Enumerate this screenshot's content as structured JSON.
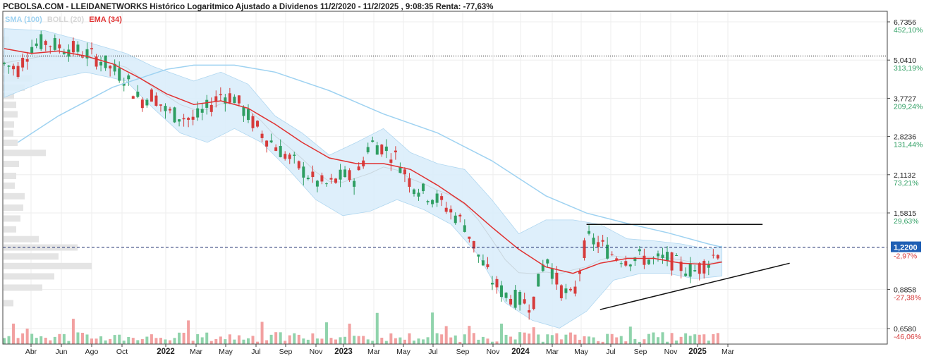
{
  "header": {
    "title": "PCBOLSA.COM - LLEIDANETWORKS Histórico Logaritmico Ajustado a Dividenos 11/2/2020 - 11/2/2025 , 9:08:35 Renta: -77,63%"
  },
  "legend": {
    "sma": "SMA (100)",
    "boll": "BOLL (20)",
    "ema": "EMA (34)"
  },
  "colors": {
    "up": "#2e9e62",
    "down": "#d63b3b",
    "up_volume": "#8fd3ab",
    "down_volume": "#f2a0a0",
    "ema": "#e03131",
    "sma": "#9ed2f1",
    "bollinger_fill": "#dbeefb",
    "current_price_box": "#1f5fb4"
  },
  "chart_data": {
    "type": "candlestick",
    "scale": "log",
    "y_axis_ticks": [
      {
        "price": "6,7356",
        "pct": "452,10%",
        "value": 6.7356
      },
      {
        "price": "5,0410",
        "pct": "313,19%",
        "value": 5.041
      },
      {
        "price": "3,7727",
        "pct": "209,24%",
        "value": 3.7727
      },
      {
        "price": "2,8236",
        "pct": "131,44%",
        "value": 2.8236
      },
      {
        "price": "2,1132",
        "pct": "73,21%",
        "value": 2.1132
      },
      {
        "price": "1,5815",
        "pct": "29,63%",
        "value": 1.5815
      },
      {
        "price": "0,8858",
        "pct": "-27,38%",
        "value": 0.8858
      },
      {
        "price": "0,6580",
        "pct": "-46,06%",
        "value": 0.658
      }
    ],
    "current_price": {
      "label": "1,2200",
      "pct": "-2,97%",
      "value": 1.22
    },
    "resistance_reference": 5.2,
    "x_axis_ticks": [
      {
        "label": "Abr",
        "bold": false
      },
      {
        "label": "Jun",
        "bold": false
      },
      {
        "label": "Ago",
        "bold": false
      },
      {
        "label": "Oct",
        "bold": false
      },
      {
        "label": "2022",
        "bold": true
      },
      {
        "label": "Mar",
        "bold": false
      },
      {
        "label": "May",
        "bold": false
      },
      {
        "label": "Jul",
        "bold": false
      },
      {
        "label": "Sep",
        "bold": false
      },
      {
        "label": "Nov",
        "bold": false
      },
      {
        "label": "2023",
        "bold": true
      },
      {
        "label": "Mar",
        "bold": false
      },
      {
        "label": "May",
        "bold": false
      },
      {
        "label": "Jul",
        "bold": false
      },
      {
        "label": "Sep",
        "bold": false
      },
      {
        "label": "Nov",
        "bold": false
      },
      {
        "label": "2024",
        "bold": true
      },
      {
        "label": "Mar",
        "bold": false
      },
      {
        "label": "May",
        "bold": false
      },
      {
        "label": "Jul",
        "bold": false
      },
      {
        "label": "Sep",
        "bold": false
      },
      {
        "label": "Nov",
        "bold": false
      },
      {
        "label": "2025",
        "bold": true
      },
      {
        "label": "Mar",
        "bold": false
      }
    ],
    "price_path": [
      [
        0,
        4.9
      ],
      [
        1,
        4.7
      ],
      [
        2,
        5.6
      ],
      [
        3,
        5.8
      ],
      [
        4,
        5.6
      ],
      [
        5,
        5.5
      ],
      [
        6,
        5.3
      ],
      [
        7,
        5.1
      ],
      [
        8,
        4.7
      ],
      [
        9,
        4.4
      ],
      [
        10,
        3.7
      ],
      [
        11,
        3.9
      ],
      [
        12,
        3.4
      ],
      [
        13,
        3.3
      ],
      [
        14,
        3.2
      ],
      [
        15,
        3.5
      ],
      [
        16,
        3.9
      ],
      [
        17,
        3.8
      ],
      [
        18,
        3.3
      ],
      [
        19,
        2.9
      ],
      [
        20,
        2.65
      ],
      [
        21,
        2.4
      ],
      [
        22,
        2.2
      ],
      [
        23,
        2.0
      ],
      [
        24,
        1.95
      ],
      [
        25,
        2.1
      ],
      [
        26,
        2.05
      ],
      [
        27,
        2.7
      ],
      [
        28,
        2.6
      ],
      [
        29,
        2.4
      ],
      [
        30,
        2.0
      ],
      [
        31,
        1.85
      ],
      [
        32,
        1.75
      ],
      [
        33,
        1.6
      ],
      [
        34,
        1.45
      ],
      [
        35,
        1.15
      ],
      [
        36,
        0.95
      ],
      [
        37,
        0.85
      ],
      [
        38,
        0.82
      ],
      [
        39,
        0.79
      ],
      [
        40,
        1.15
      ],
      [
        41,
        0.9
      ],
      [
        42,
        0.82
      ],
      [
        43,
        1.3
      ],
      [
        44,
        1.25
      ],
      [
        45,
        1.15
      ],
      [
        46,
        1.12
      ],
      [
        47,
        1.13
      ],
      [
        48,
        1.1
      ],
      [
        49,
        1.12
      ],
      [
        50,
        1.05
      ],
      [
        51,
        1.02
      ],
      [
        52,
        1.1
      ],
      [
        53,
        1.22
      ]
    ],
    "ema_path": [
      [
        0,
        5.5
      ],
      [
        2,
        5.3
      ],
      [
        4,
        5.4
      ],
      [
        6,
        5.2
      ],
      [
        8,
        4.9
      ],
      [
        10,
        4.4
      ],
      [
        12,
        3.9
      ],
      [
        14,
        3.6
      ],
      [
        16,
        3.7
      ],
      [
        18,
        3.5
      ],
      [
        20,
        3.1
      ],
      [
        22,
        2.7
      ],
      [
        24,
        2.4
      ],
      [
        26,
        2.3
      ],
      [
        28,
        2.3
      ],
      [
        30,
        2.2
      ],
      [
        32,
        1.95
      ],
      [
        34,
        1.7
      ],
      [
        36,
        1.42
      ],
      [
        38,
        1.2
      ],
      [
        40,
        1.05
      ],
      [
        42,
        1.0
      ],
      [
        44,
        1.08
      ],
      [
        46,
        1.12
      ],
      [
        48,
        1.12
      ],
      [
        50,
        1.08
      ],
      [
        52,
        1.07
      ],
      [
        53,
        1.09
      ]
    ],
    "sma_path": [
      [
        1,
        2.7
      ],
      [
        4,
        3.3
      ],
      [
        8,
        4.1
      ],
      [
        12,
        4.7
      ],
      [
        14,
        4.85
      ],
      [
        17,
        4.85
      ],
      [
        20,
        4.6
      ],
      [
        24,
        4.0
      ],
      [
        28,
        3.35
      ],
      [
        32,
        2.9
      ],
      [
        36,
        2.35
      ],
      [
        40,
        1.8
      ],
      [
        43,
        1.58
      ],
      [
        46,
        1.46
      ],
      [
        49,
        1.36
      ],
      [
        52,
        1.25
      ],
      [
        53,
        1.22
      ]
    ],
    "bollinger_upper": [
      [
        0,
        6.4
      ],
      [
        3,
        6.3
      ],
      [
        6,
        5.8
      ],
      [
        9,
        5.3
      ],
      [
        11,
        4.8
      ],
      [
        14,
        4.3
      ],
      [
        16,
        4.6
      ],
      [
        18,
        4.2
      ],
      [
        20,
        3.3
      ],
      [
        22,
        2.9
      ],
      [
        24,
        2.45
      ],
      [
        26,
        2.7
      ],
      [
        28,
        3.0
      ],
      [
        30,
        2.5
      ],
      [
        32,
        2.3
      ],
      [
        34,
        2.2
      ],
      [
        36,
        1.75
      ],
      [
        38,
        1.35
      ],
      [
        40,
        1.5
      ],
      [
        42,
        1.5
      ],
      [
        44,
        1.45
      ],
      [
        46,
        1.3
      ],
      [
        48,
        1.28
      ],
      [
        50,
        1.25
      ],
      [
        52,
        1.2
      ],
      [
        53,
        1.23
      ]
    ],
    "bollinger_lower": [
      [
        0,
        3.8
      ],
      [
        3,
        4.3
      ],
      [
        6,
        4.6
      ],
      [
        9,
        4.3
      ],
      [
        11,
        3.5
      ],
      [
        13,
        2.9
      ],
      [
        15,
        2.7
      ],
      [
        17,
        3.0
      ],
      [
        19,
        2.7
      ],
      [
        21,
        2.2
      ],
      [
        23,
        1.75
      ],
      [
        25,
        1.55
      ],
      [
        27,
        1.6
      ],
      [
        29,
        1.75
      ],
      [
        31,
        1.62
      ],
      [
        33,
        1.45
      ],
      [
        35,
        1.15
      ],
      [
        37,
        0.8
      ],
      [
        39,
        0.7
      ],
      [
        41,
        0.66
      ],
      [
        43,
        0.75
      ],
      [
        45,
        0.95
      ],
      [
        47,
        1.0
      ],
      [
        49,
        1.0
      ],
      [
        51,
        0.96
      ],
      [
        53,
        0.98
      ]
    ],
    "volume_profile": [
      [
        5.9,
        8
      ],
      [
        5.6,
        10
      ],
      [
        5.3,
        12
      ],
      [
        5.0,
        14
      ],
      [
        4.7,
        22
      ],
      [
        4.4,
        40
      ],
      [
        4.1,
        30
      ],
      [
        3.85,
        15
      ],
      [
        3.6,
        18
      ],
      [
        3.35,
        20
      ],
      [
        3.1,
        15
      ],
      [
        2.9,
        14
      ],
      [
        2.7,
        20
      ],
      [
        2.5,
        60
      ],
      [
        2.3,
        22
      ],
      [
        2.1,
        18
      ],
      [
        1.95,
        16
      ],
      [
        1.8,
        30
      ],
      [
        1.65,
        28
      ],
      [
        1.52,
        24
      ],
      [
        1.4,
        18
      ],
      [
        1.3,
        50
      ],
      [
        1.22,
        105
      ],
      [
        1.14,
        78
      ],
      [
        1.06,
        125
      ],
      [
        0.98,
        72
      ],
      [
        0.9,
        55
      ],
      [
        0.8,
        14
      ]
    ],
    "trendlines": [
      {
        "name": "resistance",
        "from": [
          43,
          1.45
        ],
        "to": [
          56,
          1.45
        ]
      },
      {
        "name": "support",
        "from": [
          44,
          0.76
        ],
        "to": [
          58,
          1.08
        ]
      }
    ]
  }
}
